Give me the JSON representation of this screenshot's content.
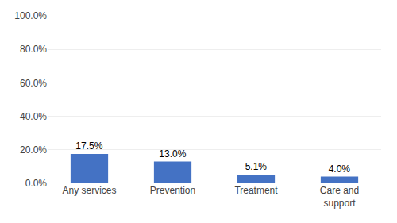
{
  "chart_data": {
    "type": "bar",
    "categories": [
      "Any services",
      "Prevention",
      "Treatment",
      "Care and\nsupport"
    ],
    "values": [
      17.5,
      13.0,
      5.1,
      4.0
    ],
    "value_labels": [
      "17.5%",
      "13.0%",
      "5.1%",
      "4.0%"
    ],
    "data_labels": true,
    "color": "#4472c4",
    "ylim": [
      0,
      100
    ],
    "yticks": [
      {
        "value": 0,
        "label": "0.0%"
      },
      {
        "value": 20,
        "label": "20.0%"
      },
      {
        "value": 40,
        "label": "40.0%"
      },
      {
        "value": 60,
        "label": "60.0%"
      },
      {
        "value": 80,
        "label": "80.0%"
      },
      {
        "value": 100,
        "label": "100.0%"
      }
    ],
    "grid": true
  }
}
